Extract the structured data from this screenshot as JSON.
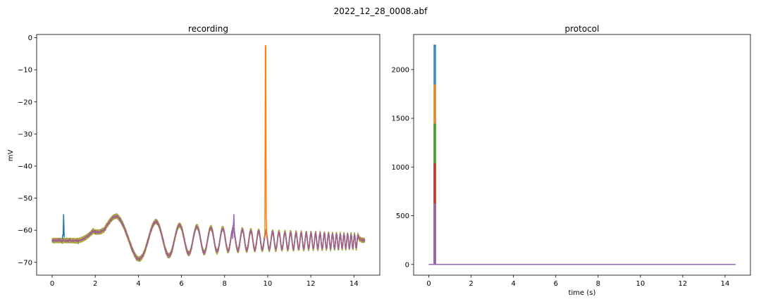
{
  "figure": {
    "title": "2022_12_28_0008.abf"
  },
  "chart_data": [
    {
      "type": "line",
      "title": "recording",
      "xlabel": "",
      "ylabel": "mV",
      "xlim": [
        -0.72,
        15.2
      ],
      "ylim": [
        -74,
        1
      ],
      "xticks": [
        0,
        2,
        4,
        6,
        8,
        10,
        12,
        14
      ],
      "yticks": [
        0,
        -10,
        -20,
        -30,
        -40,
        -50,
        -60,
        -70
      ],
      "grid": false,
      "legend": "none",
      "colors": [
        "#1f77b4",
        "#ff7f0e",
        "#2ca02c",
        "#d62728",
        "#9467bd",
        "#8c564b",
        "#e377c2",
        "#7f7f7f",
        "#bcbd22"
      ],
      "overlay_color": "#a0608f",
      "baseline_mV": -63.2,
      "chirp": {
        "start_s": 0.9,
        "end_s": 14.2,
        "start_freq_hz": 0.2,
        "end_freq_hz": 6.5
      },
      "envelope_points": [
        {
          "t": 1.0,
          "upper": -58,
          "lower": -63.5
        },
        {
          "t": 1.9,
          "upper": -55,
          "lower": -63.5
        },
        {
          "t": 2.4,
          "upper": -57,
          "lower": -70
        },
        {
          "t": 3.0,
          "upper": -55.5,
          "lower": -70.5
        },
        {
          "t": 4.0,
          "upper": -56.5,
          "lower": -69
        },
        {
          "t": 6.0,
          "upper": -58.5,
          "lower": -67.5
        },
        {
          "t": 8.0,
          "upper": -59.5,
          "lower": -66.5
        },
        {
          "t": 10.0,
          "upper": -60.5,
          "lower": -66
        },
        {
          "t": 14.2,
          "upper": -61.5,
          "lower": -65.5
        }
      ],
      "features": [
        {
          "series": 1,
          "t": 9.9,
          "peak_mV": -2.5,
          "description": "action potential"
        },
        {
          "series": 0,
          "t": 0.5,
          "peak_mV": -61.5,
          "description": "small transient"
        },
        {
          "series": 4,
          "t": 8.4,
          "peak_mV": -58.5,
          "description": "small transient"
        }
      ]
    },
    {
      "type": "line",
      "title": "protocol",
      "xlabel": "time (s)",
      "ylabel": "",
      "xlim": [
        -0.72,
        15.2
      ],
      "ylim": [
        -110,
        2360
      ],
      "xticks": [
        0,
        2,
        4,
        6,
        8,
        10,
        12,
        14
      ],
      "yticks": [
        0,
        500,
        1000,
        1500,
        2000
      ],
      "grid": false,
      "legend": "none",
      "step_start_s": 0.25,
      "step_end_s": 0.31,
      "trace_end_s": 14.5,
      "series": [
        {
          "color": "#1f77b4",
          "amplitude": 2250
        },
        {
          "color": "#ff7f0e",
          "amplitude": 1840
        },
        {
          "color": "#2ca02c",
          "amplitude": 1440
        },
        {
          "color": "#d62728",
          "amplitude": 1030
        },
        {
          "color": "#9467bd",
          "amplitude": 620
        }
      ]
    }
  ]
}
